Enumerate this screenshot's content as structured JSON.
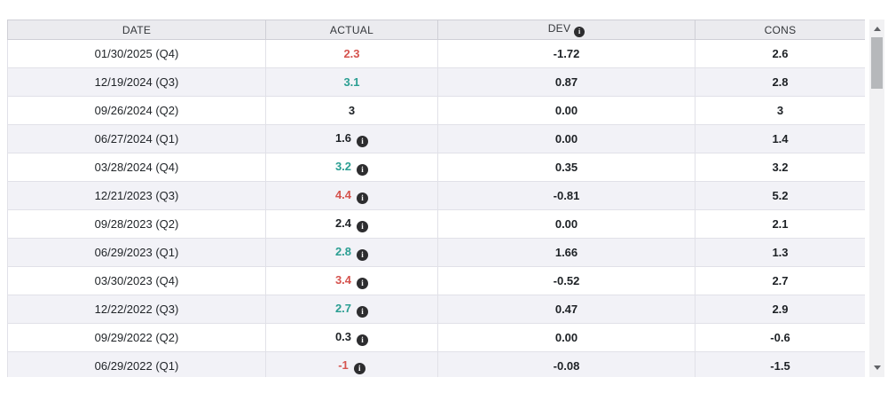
{
  "colors": {
    "negative": "#d5534e",
    "positive": "#2a9e92",
    "neutral": "#1d2125",
    "header_bg": "#ebebef",
    "row_alt_bg": "#f2f2f7"
  },
  "table": {
    "columns": [
      {
        "key": "date",
        "label": "DATE",
        "info_icon": false
      },
      {
        "key": "actual",
        "label": "ACTUAL",
        "info_icon": false
      },
      {
        "key": "dev",
        "label": "DEV",
        "info_icon": true
      },
      {
        "key": "cons",
        "label": "CONS",
        "info_icon": false
      }
    ],
    "info_icon_glyph": "i",
    "rows": [
      {
        "date": "01/30/2025 (Q4)",
        "actual": "2.3",
        "actual_color": "negative",
        "actual_info": false,
        "dev": "-1.72",
        "cons": "2.6"
      },
      {
        "date": "12/19/2024 (Q3)",
        "actual": "3.1",
        "actual_color": "positive",
        "actual_info": false,
        "dev": "0.87",
        "cons": "2.8"
      },
      {
        "date": "09/26/2024 (Q2)",
        "actual": "3",
        "actual_color": "neutral",
        "actual_info": false,
        "dev": "0.00",
        "cons": "3"
      },
      {
        "date": "06/27/2024 (Q1)",
        "actual": "1.6",
        "actual_color": "neutral",
        "actual_info": true,
        "dev": "0.00",
        "cons": "1.4"
      },
      {
        "date": "03/28/2024 (Q4)",
        "actual": "3.2",
        "actual_color": "positive",
        "actual_info": true,
        "dev": "0.35",
        "cons": "3.2"
      },
      {
        "date": "12/21/2023 (Q3)",
        "actual": "4.4",
        "actual_color": "negative",
        "actual_info": true,
        "dev": "-0.81",
        "cons": "5.2"
      },
      {
        "date": "09/28/2023 (Q2)",
        "actual": "2.4",
        "actual_color": "neutral",
        "actual_info": true,
        "dev": "0.00",
        "cons": "2.1"
      },
      {
        "date": "06/29/2023 (Q1)",
        "actual": "2.8",
        "actual_color": "positive",
        "actual_info": true,
        "dev": "1.66",
        "cons": "1.3"
      },
      {
        "date": "03/30/2023 (Q4)",
        "actual": "3.4",
        "actual_color": "negative",
        "actual_info": true,
        "dev": "-0.52",
        "cons": "2.7"
      },
      {
        "date": "12/22/2022 (Q3)",
        "actual": "2.7",
        "actual_color": "positive",
        "actual_info": true,
        "dev": "0.47",
        "cons": "2.9"
      },
      {
        "date": "09/29/2022 (Q2)",
        "actual": "0.3",
        "actual_color": "neutral",
        "actual_info": true,
        "dev": "0.00",
        "cons": "-0.6"
      },
      {
        "date": "06/29/2022 (Q1)",
        "actual": "-1",
        "actual_color": "negative",
        "actual_info": true,
        "dev": "-0.08",
        "cons": "-1.5"
      }
    ]
  }
}
